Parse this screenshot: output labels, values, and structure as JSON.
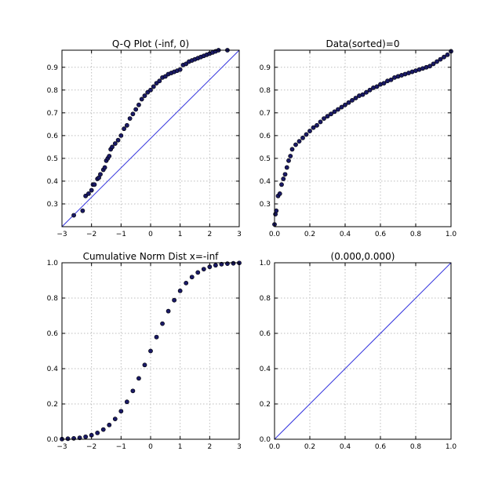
{
  "figure": {
    "background": "#ffffff",
    "marker_color": "#1a1a66",
    "line_color": "#3333dd",
    "grid": true
  },
  "chart_data": [
    {
      "type": "scatter",
      "title": "Q-Q Plot (-inf, 0)",
      "xlabel": "",
      "ylabel": "",
      "xlim": [
        -3,
        3
      ],
      "ylim": [
        0.2,
        0.975
      ],
      "x_ticks": [
        -3,
        -2,
        -1,
        0,
        1,
        2,
        3
      ],
      "y_ticks": [
        0.3,
        0.4,
        0.5,
        0.6,
        0.7,
        0.8,
        0.9
      ],
      "reference_line": {
        "x": [
          -3,
          3
        ],
        "y": [
          0.2,
          0.975
        ]
      },
      "series": [
        {
          "x": [
            -2.6,
            -2.3,
            -2.2,
            -2.1,
            -2.0,
            -1.95,
            -1.9,
            -1.8,
            -1.75,
            -1.7,
            -1.6,
            -1.55,
            -1.5,
            -1.45,
            -1.4,
            -1.35,
            -1.3,
            -1.2,
            -1.1,
            -1.0,
            -0.9,
            -0.8,
            -0.7,
            -0.6,
            -0.5,
            -0.4,
            -0.3,
            -0.2,
            -0.1,
            0.0,
            0.1,
            0.2,
            0.3,
            0.4,
            0.5,
            0.6,
            0.7,
            0.8,
            0.9,
            1.0,
            1.1,
            1.2,
            1.3,
            1.4,
            1.5,
            1.6,
            1.7,
            1.8,
            1.9,
            2.0,
            2.1,
            2.2,
            2.3,
            2.6
          ],
          "y": [
            0.25,
            0.27,
            0.335,
            0.345,
            0.36,
            0.385,
            0.385,
            0.41,
            0.415,
            0.43,
            0.45,
            0.46,
            0.49,
            0.5,
            0.51,
            0.54,
            0.55,
            0.565,
            0.58,
            0.6,
            0.63,
            0.645,
            0.675,
            0.695,
            0.715,
            0.735,
            0.76,
            0.775,
            0.79,
            0.8,
            0.815,
            0.83,
            0.84,
            0.855,
            0.86,
            0.87,
            0.875,
            0.88,
            0.885,
            0.89,
            0.91,
            0.915,
            0.925,
            0.93,
            0.935,
            0.94,
            0.945,
            0.95,
            0.955,
            0.96,
            0.965,
            0.97,
            0.975,
            0.975
          ]
        }
      ]
    },
    {
      "type": "scatter",
      "title": "Data(sorted)=0",
      "xlabel": "",
      "ylabel": "",
      "xlim": [
        0.0,
        1.0
      ],
      "ylim": [
        0.2,
        0.975
      ],
      "x_ticks": [
        0.0,
        0.2,
        0.4,
        0.6,
        0.8,
        1.0
      ],
      "y_ticks": [
        0.3,
        0.4,
        0.5,
        0.6,
        0.7,
        0.8,
        0.9
      ],
      "series": [
        {
          "x": [
            0.0,
            0.005,
            0.01,
            0.02,
            0.03,
            0.04,
            0.05,
            0.06,
            0.07,
            0.08,
            0.09,
            0.1,
            0.12,
            0.14,
            0.16,
            0.18,
            0.2,
            0.22,
            0.24,
            0.26,
            0.28,
            0.3,
            0.32,
            0.34,
            0.36,
            0.38,
            0.4,
            0.42,
            0.44,
            0.46,
            0.48,
            0.5,
            0.52,
            0.54,
            0.56,
            0.58,
            0.6,
            0.62,
            0.64,
            0.66,
            0.68,
            0.7,
            0.72,
            0.74,
            0.76,
            0.78,
            0.8,
            0.82,
            0.84,
            0.86,
            0.88,
            0.9,
            0.92,
            0.94,
            0.96,
            0.98,
            1.0
          ],
          "y": [
            0.21,
            0.255,
            0.27,
            0.335,
            0.345,
            0.385,
            0.41,
            0.43,
            0.46,
            0.49,
            0.51,
            0.54,
            0.56,
            0.575,
            0.59,
            0.605,
            0.62,
            0.635,
            0.645,
            0.66,
            0.675,
            0.685,
            0.695,
            0.705,
            0.715,
            0.725,
            0.735,
            0.745,
            0.755,
            0.765,
            0.775,
            0.78,
            0.79,
            0.8,
            0.81,
            0.815,
            0.825,
            0.83,
            0.84,
            0.845,
            0.855,
            0.86,
            0.865,
            0.87,
            0.875,
            0.88,
            0.885,
            0.89,
            0.895,
            0.9,
            0.905,
            0.915,
            0.925,
            0.935,
            0.945,
            0.955,
            0.97
          ]
        }
      ]
    },
    {
      "type": "scatter",
      "title": "Cumulative Norm Dist x=-inf",
      "xlabel": "",
      "ylabel": "",
      "xlim": [
        -3,
        3
      ],
      "ylim": [
        0.0,
        1.0
      ],
      "x_ticks": [
        -3,
        -2,
        -1,
        0,
        1,
        2,
        3
      ],
      "y_ticks": [
        0.0,
        0.2,
        0.4,
        0.6,
        0.8,
        1.0
      ],
      "series": [
        {
          "x": [
            -3.0,
            -2.8,
            -2.6,
            -2.4,
            -2.2,
            -2.0,
            -1.8,
            -1.6,
            -1.4,
            -1.2,
            -1.0,
            -0.8,
            -0.6,
            -0.4,
            -0.2,
            0.0,
            0.2,
            0.4,
            0.6,
            0.8,
            1.0,
            1.2,
            1.4,
            1.6,
            1.8,
            2.0,
            2.2,
            2.4,
            2.6,
            2.8,
            3.0
          ],
          "y": [
            0.001,
            0.003,
            0.005,
            0.008,
            0.014,
            0.023,
            0.036,
            0.055,
            0.081,
            0.115,
            0.159,
            0.212,
            0.274,
            0.345,
            0.421,
            0.5,
            0.579,
            0.655,
            0.726,
            0.788,
            0.841,
            0.885,
            0.919,
            0.945,
            0.964,
            0.977,
            0.986,
            0.992,
            0.995,
            0.997,
            0.999
          ]
        }
      ]
    },
    {
      "type": "line",
      "title": "(0.000,0.000)",
      "xlabel": "",
      "ylabel": "",
      "xlim": [
        0.0,
        1.0
      ],
      "ylim": [
        0.0,
        1.0
      ],
      "x_ticks": [
        0.0,
        0.2,
        0.4,
        0.6,
        0.8,
        1.0
      ],
      "y_ticks": [
        0.0,
        0.2,
        0.4,
        0.6,
        0.8,
        1.0
      ],
      "series": [
        {
          "x": [
            0.0,
            1.0
          ],
          "y": [
            0.0,
            1.0
          ]
        }
      ]
    }
  ]
}
